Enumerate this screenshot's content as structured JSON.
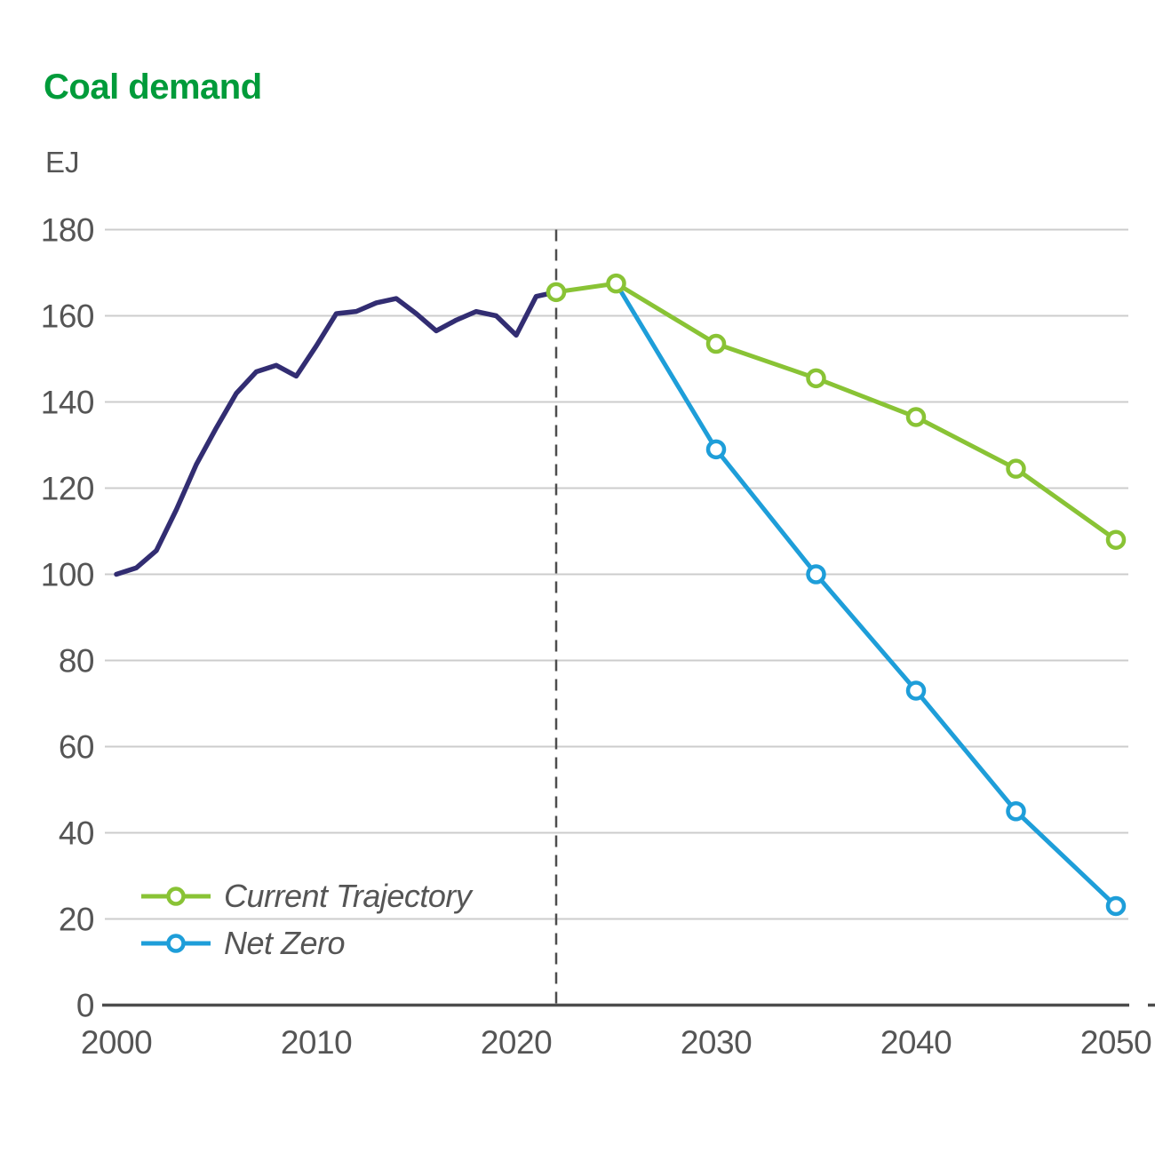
{
  "title": "Coal demand",
  "unit_label": "EJ",
  "colors": {
    "title_green": "#009b3a",
    "history": "#322d72",
    "current_trajectory": "#89c335",
    "net_zero": "#1e9ed9",
    "text_gray": "#555555",
    "gridline": "#cccccc",
    "axis_line": "#4d4d4d"
  },
  "legend": [
    {
      "label": "Current Trajectory",
      "series_key": "current_trajectory"
    },
    {
      "label": "Net Zero",
      "series_key": "net_zero"
    }
  ],
  "chart_data": {
    "type": "line",
    "title": "Coal demand",
    "xlabel": "",
    "ylabel": "EJ",
    "xlim": [
      2000,
      2050
    ],
    "ylim": [
      0,
      180
    ],
    "xticks": [
      2000,
      2010,
      2020,
      2030,
      2040,
      2050
    ],
    "yticks": [
      0,
      20,
      40,
      60,
      80,
      100,
      120,
      140,
      160,
      180
    ],
    "grid": true,
    "legend_position": "lower-left",
    "vline": {
      "x": 2022,
      "style": "dashed"
    },
    "series": [
      {
        "name": "History",
        "color_key": "history",
        "markers": "none",
        "x": [
          2000,
          2001,
          2002,
          2003,
          2004,
          2005,
          2006,
          2007,
          2008,
          2009,
          2010,
          2011,
          2012,
          2013,
          2014,
          2015,
          2016,
          2017,
          2018,
          2019,
          2020,
          2021,
          2022
        ],
        "y": [
          100,
          101.5,
          105.5,
          115,
          125.5,
          134,
          142,
          147,
          148.5,
          146,
          153,
          160.5,
          161,
          163,
          164,
          160.5,
          156.5,
          159,
          161,
          160,
          155.5,
          164.5,
          165.5
        ]
      },
      {
        "name": "Current Trajectory",
        "color_key": "current_trajectory",
        "markers": "all",
        "x": [
          2022,
          2025,
          2030,
          2035,
          2040,
          2045,
          2050
        ],
        "y": [
          165.5,
          167.5,
          153.5,
          145.5,
          136.5,
          124.5,
          108
        ]
      },
      {
        "name": "Net Zero",
        "color_key": "net_zero",
        "markers": "skip_first",
        "x": [
          2025,
          2030,
          2035,
          2040,
          2045,
          2050
        ],
        "y": [
          167.5,
          129,
          100,
          73,
          45,
          23
        ]
      }
    ]
  }
}
